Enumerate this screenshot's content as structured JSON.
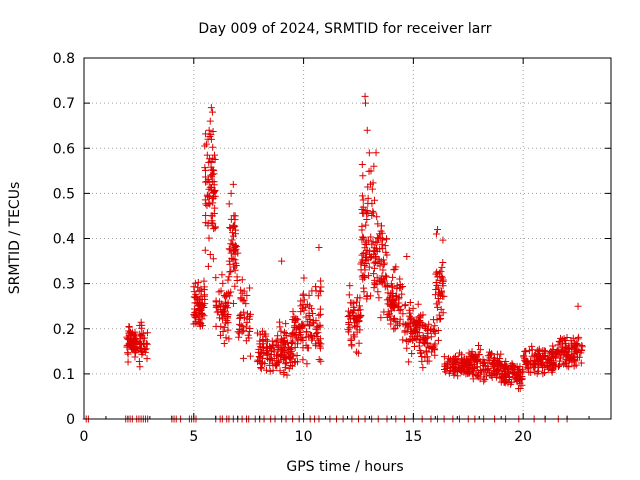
{
  "chart_data": {
    "type": "scatter",
    "title": "Day 009 of 2024, SRMTID for receiver larr",
    "xlabel": "GPS time / hours",
    "ylabel": "SRMTID / TECUs",
    "xlim": [
      0,
      24
    ],
    "ylim": [
      0,
      0.8
    ],
    "xticks": [
      0,
      5,
      10,
      15,
      20
    ],
    "xtick_labels": [
      "0",
      "5",
      "10",
      "15",
      "20"
    ],
    "yticks": [
      0,
      0.1,
      0.2,
      0.3,
      0.4,
      0.5,
      0.6,
      0.7,
      0.8
    ],
    "ytick_labels": [
      "0",
      "0.1",
      "0.2",
      "0.3",
      "0.4",
      "0.5",
      "0.6",
      "0.7",
      "0.8"
    ],
    "grid": true,
    "marker": "plus",
    "color": "#e00000",
    "zero_points_x": [
      0.1,
      0.2,
      1.9,
      2.0,
      2.1,
      2.2,
      2.4,
      2.5,
      2.6,
      2.7,
      2.8,
      2.9,
      4.0,
      4.1,
      4.2,
      4.4,
      4.8,
      4.9,
      5.0,
      5.1,
      6.0,
      6.2,
      6.3,
      6.5,
      6.6,
      6.8,
      7.0,
      7.2,
      7.4,
      7.5,
      7.8,
      8.0,
      8.2,
      8.5,
      8.7,
      9.0,
      9.2,
      9.5,
      9.8,
      10.0,
      10.3,
      10.5,
      10.7,
      11.2,
      11.5,
      11.8,
      12.2,
      12.5,
      12.8,
      13.1,
      13.4,
      13.8,
      14.2,
      14.6,
      15.0,
      15.4,
      15.8,
      16.1,
      16.4,
      16.8,
      17.1,
      17.5,
      17.8,
      18.2,
      18.7,
      19.2,
      19.8,
      20.5,
      21.0,
      21.6,
      22.0
    ],
    "clusters": [
      {
        "x0": 1.95,
        "x1": 2.35,
        "center": 0.17,
        "spread": 0.03,
        "n": 45
      },
      {
        "x0": 2.3,
        "x1": 2.9,
        "center": 0.17,
        "spread": 0.04,
        "n": 50
      },
      {
        "x0": 5.0,
        "x1": 5.5,
        "center": 0.25,
        "spread": 0.05,
        "n": 70
      },
      {
        "x0": 5.5,
        "x1": 6.0,
        "center": 0.5,
        "spread": 0.12,
        "n": 75
      },
      {
        "x0": 6.0,
        "x1": 6.6,
        "center": 0.24,
        "spread": 0.06,
        "n": 55
      },
      {
        "x0": 6.6,
        "x1": 7.0,
        "center": 0.38,
        "spread": 0.1,
        "n": 50
      },
      {
        "x0": 7.0,
        "x1": 7.6,
        "center": 0.22,
        "spread": 0.07,
        "n": 40
      },
      {
        "x0": 7.9,
        "x1": 8.8,
        "center": 0.15,
        "spread": 0.04,
        "n": 70
      },
      {
        "x0": 8.8,
        "x1": 9.5,
        "center": 0.15,
        "spread": 0.05,
        "n": 70
      },
      {
        "x0": 9.5,
        "x1": 10.0,
        "center": 0.2,
        "spread": 0.06,
        "n": 50
      },
      {
        "x0": 10.0,
        "x1": 10.8,
        "center": 0.22,
        "spread": 0.08,
        "n": 65
      },
      {
        "x0": 12.0,
        "x1": 12.6,
        "center": 0.22,
        "spread": 0.06,
        "n": 55
      },
      {
        "x0": 12.6,
        "x1": 13.2,
        "center": 0.42,
        "spread": 0.14,
        "n": 75
      },
      {
        "x0": 13.2,
        "x1": 13.8,
        "center": 0.35,
        "spread": 0.1,
        "n": 65
      },
      {
        "x0": 13.8,
        "x1": 14.5,
        "center": 0.26,
        "spread": 0.06,
        "n": 70
      },
      {
        "x0": 14.5,
        "x1": 15.3,
        "center": 0.2,
        "spread": 0.05,
        "n": 70
      },
      {
        "x0": 15.3,
        "x1": 16.0,
        "center": 0.17,
        "spread": 0.05,
        "n": 60
      },
      {
        "x0": 16.0,
        "x1": 16.4,
        "center": 0.28,
        "spread": 0.08,
        "n": 40
      },
      {
        "x0": 16.4,
        "x1": 17.5,
        "center": 0.12,
        "spread": 0.02,
        "n": 90
      },
      {
        "x0": 17.5,
        "x1": 19.0,
        "center": 0.12,
        "spread": 0.03,
        "n": 130
      },
      {
        "x0": 19.0,
        "x1": 20.0,
        "center": 0.1,
        "spread": 0.025,
        "n": 90
      },
      {
        "x0": 20.0,
        "x1": 21.5,
        "center": 0.13,
        "spread": 0.025,
        "n": 120
      },
      {
        "x0": 21.5,
        "x1": 22.7,
        "center": 0.15,
        "spread": 0.035,
        "n": 100
      }
    ],
    "peaks": [
      {
        "x": 5.8,
        "y": 0.69
      },
      {
        "x": 5.85,
        "y": 0.68
      },
      {
        "x": 5.75,
        "y": 0.66
      },
      {
        "x": 5.7,
        "y": 0.64
      },
      {
        "x": 5.65,
        "y": 0.62
      },
      {
        "x": 12.8,
        "y": 0.715
      },
      {
        "x": 12.82,
        "y": 0.7
      },
      {
        "x": 12.9,
        "y": 0.64
      },
      {
        "x": 13.3,
        "y": 0.59
      },
      {
        "x": 13.2,
        "y": 0.56
      },
      {
        "x": 6.8,
        "y": 0.52
      },
      {
        "x": 6.7,
        "y": 0.5
      },
      {
        "x": 16.1,
        "y": 0.42
      },
      {
        "x": 16.05,
        "y": 0.41
      },
      {
        "x": 10.7,
        "y": 0.38
      },
      {
        "x": 9.0,
        "y": 0.35
      },
      {
        "x": 14.7,
        "y": 0.36
      },
      {
        "x": 22.5,
        "y": 0.25
      }
    ]
  }
}
